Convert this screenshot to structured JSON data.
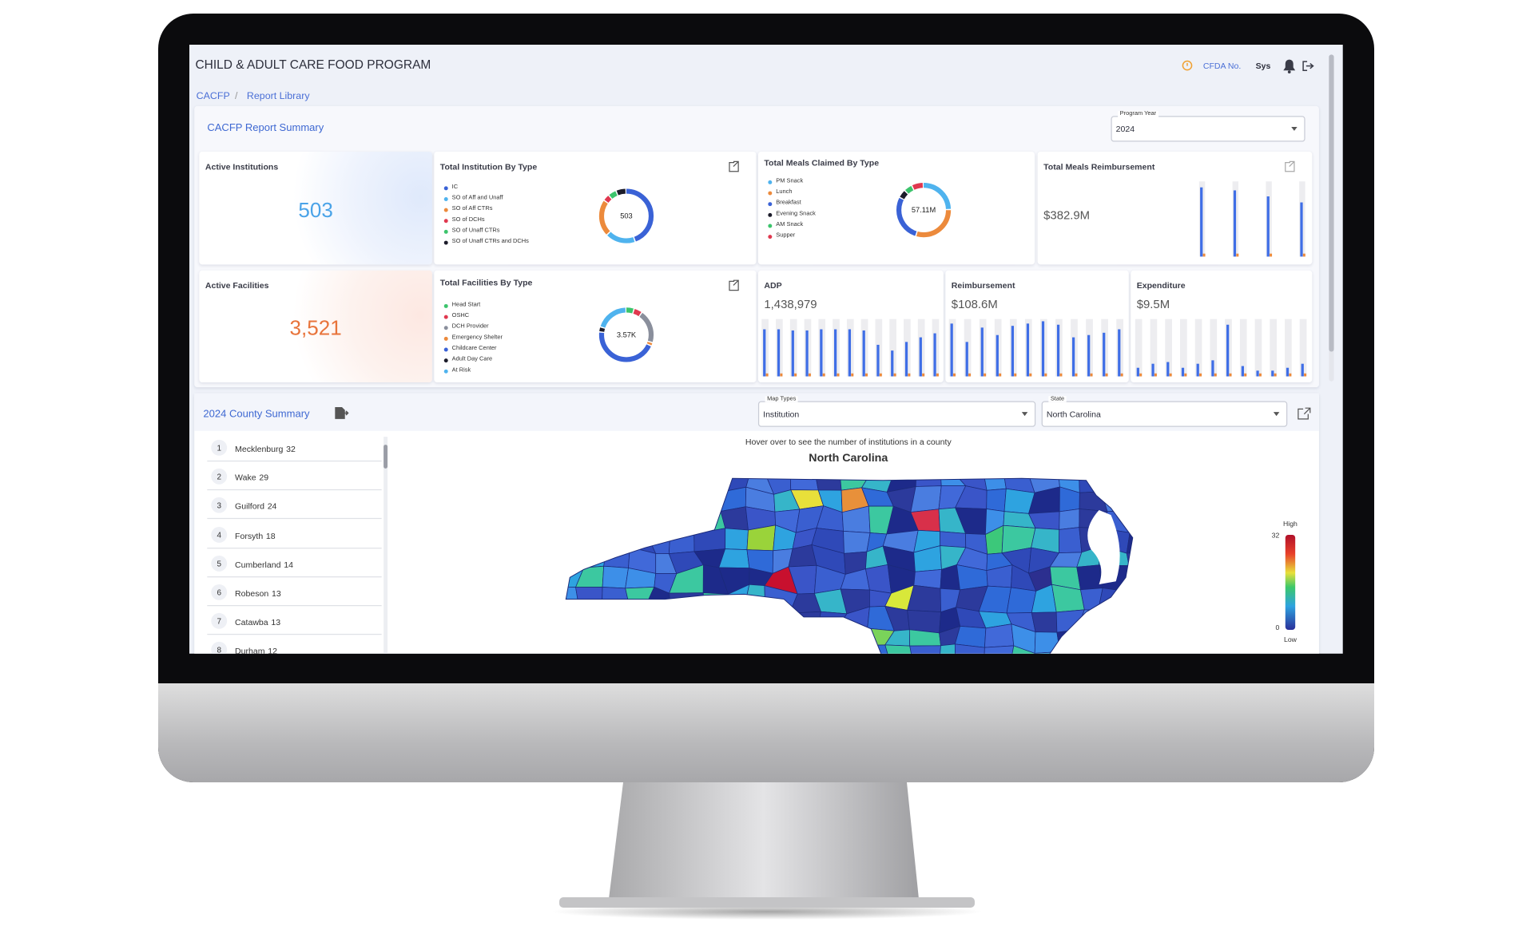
{
  "header": {
    "title": "CHILD & ADULT CARE FOOD PROGRAM",
    "cfda": "CFDA No.",
    "user": "Sys"
  },
  "breadcrumb": {
    "items": [
      "CACFP",
      "Report Library"
    ],
    "separator": "/"
  },
  "summary": {
    "title": "CACFP Report Summary",
    "program_year": {
      "label": "Program Year",
      "value": "2024"
    }
  },
  "cards": {
    "active_institutions": {
      "title": "Active Institutions",
      "value": "503"
    },
    "institution_by_type": {
      "title": "Total Institution By Type",
      "center": "503",
      "segments": [
        {
          "name": "IC",
          "color": "#3a62d6",
          "value": 45
        },
        {
          "name": "SO of Aff and Unaff",
          "color": "#4fb3ee",
          "value": 18
        },
        {
          "name": "SO of Aff CTRs",
          "color": "#ec8a3c",
          "value": 22
        },
        {
          "name": "SO of DCHs",
          "color": "#e0384f",
          "value": 4
        },
        {
          "name": "SO of Unaff CTRs",
          "color": "#3cc46c",
          "value": 5
        },
        {
          "name": "SO of Unaff CTRs and DCHs",
          "color": "#1c1c2a",
          "value": 6
        }
      ]
    },
    "meals_by_type": {
      "title": "Total Meals Claimed By Type",
      "center": "57.11M",
      "segments": [
        {
          "name": "PM Snack",
          "color": "#4fb3ee",
          "value": 25
        },
        {
          "name": "Lunch",
          "color": "#ec8a3c",
          "value": 30
        },
        {
          "name": "Breakfast",
          "color": "#3a62d6",
          "value": 28
        },
        {
          "name": "Evening Snack",
          "color": "#1c1c2a",
          "value": 5
        },
        {
          "name": "AM Snack",
          "color": "#3cc46c",
          "value": 5
        },
        {
          "name": "Supper",
          "color": "#e0384f",
          "value": 7
        }
      ]
    },
    "meals_reimbursement": {
      "title": "Total Meals Reimbursement",
      "value": "$382.9M",
      "bars": [
        92,
        88,
        80,
        72
      ]
    },
    "active_facilities": {
      "title": "Active Facilities",
      "value": "3,521"
    },
    "facilities_by_type": {
      "title": "Total Facilities By Type",
      "center": "3.57K",
      "segments": [
        {
          "name": "Head Start",
          "color": "#3cc46c",
          "value": 5
        },
        {
          "name": "OSHC",
          "color": "#e0384f",
          "value": 5
        },
        {
          "name": "DCH Provider",
          "color": "#8a8f9c",
          "value": 20
        },
        {
          "name": "Emergency Shelter",
          "color": "#ec8a3c",
          "value": 2
        },
        {
          "name": "Childcare Center",
          "color": "#3a62d6",
          "value": 45
        },
        {
          "name": "Adult Day Care",
          "color": "#1c1c2a",
          "value": 3
        },
        {
          "name": "At Risk",
          "color": "#4fb3ee",
          "value": 20
        }
      ]
    },
    "adp": {
      "title": "ADP",
      "value": "1,438,979",
      "bars": [
        82,
        82,
        80,
        80,
        82,
        82,
        82,
        80,
        55,
        45,
        60,
        68,
        75
      ]
    },
    "reimbursement": {
      "title": "Reimbursement",
      "value": "$108.6M",
      "bars": [
        92,
        60,
        85,
        72,
        88,
        92,
        96,
        90,
        68,
        72,
        76,
        82
      ]
    },
    "expenditure": {
      "title": "Expenditure",
      "value": "$9.5M",
      "bars": [
        15,
        22,
        25,
        15,
        22,
        28,
        90,
        18,
        10,
        10,
        15,
        22
      ]
    }
  },
  "county": {
    "title": "2024 County Summary",
    "map_type": {
      "label": "Map Types",
      "value": "Institution"
    },
    "state": {
      "label": "State",
      "value": "North Carolina"
    },
    "list": [
      {
        "rank": 1,
        "name": "Mecklenburg",
        "count": 32
      },
      {
        "rank": 2,
        "name": "Wake",
        "count": 29
      },
      {
        "rank": 3,
        "name": "Guilford",
        "count": 24
      },
      {
        "rank": 4,
        "name": "Forsyth",
        "count": 18
      },
      {
        "rank": 5,
        "name": "Cumberland",
        "count": 14
      },
      {
        "rank": 6,
        "name": "Robeson",
        "count": 13
      },
      {
        "rank": 7,
        "name": "Catawba",
        "count": 13
      },
      {
        "rank": 8,
        "name": "Durham",
        "count": 12
      }
    ],
    "hint": "Hover over to see the number of institutions in a county",
    "map_title": "North Carolina",
    "legend": {
      "high": "High",
      "low": "Low",
      "max": 32,
      "min": 0
    }
  }
}
